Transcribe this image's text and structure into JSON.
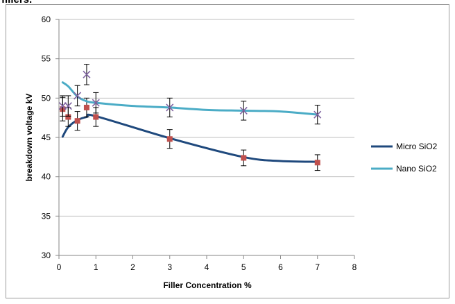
{
  "page": {
    "top_text": "fillers."
  },
  "chart_data": {
    "type": "line",
    "title": "",
    "xlabel": "Filler Concentration %",
    "ylabel": "breakdown voltage kV",
    "xlim": [
      0,
      8
    ],
    "ylim": [
      30,
      60
    ],
    "x_ticks": [
      "0",
      "1",
      "2",
      "3",
      "4",
      "5",
      "6",
      "7",
      "8"
    ],
    "y_ticks": [
      "30",
      "35",
      "40",
      "45",
      "50",
      "55",
      "60"
    ],
    "grid": "horizontal",
    "legend_position": "right",
    "series": [
      {
        "name": "Micro SiO2",
        "color": "#1f497d",
        "curve": [
          [
            0.1,
            45.1
          ],
          [
            0.25,
            46.3
          ],
          [
            0.5,
            47.2
          ],
          [
            0.75,
            47.6
          ],
          [
            1,
            47.7
          ],
          [
            3,
            44.9
          ],
          [
            5,
            42.5
          ],
          [
            6,
            42.0
          ],
          [
            7,
            41.9
          ]
        ],
        "marker": "square",
        "marker_color": "#c0504d",
        "points": [
          {
            "x": 0.1,
            "y": 48.6,
            "err": 1.5
          },
          {
            "x": 0.25,
            "y": 47.6,
            "err": 1.2
          },
          {
            "x": 0.5,
            "y": 47.1,
            "err": 1.2
          },
          {
            "x": 0.75,
            "y": 48.8,
            "err": 1.2
          },
          {
            "x": 1,
            "y": 47.6,
            "err": 1.2
          },
          {
            "x": 3,
            "y": 44.8,
            "err": 1.2
          },
          {
            "x": 5,
            "y": 42.4,
            "err": 1.0
          },
          {
            "x": 7,
            "y": 41.8,
            "err": 1.0
          }
        ]
      },
      {
        "name": "Nano SiO2",
        "color": "#4bacc6",
        "curve": [
          [
            0.1,
            52.0
          ],
          [
            0.25,
            51.5
          ],
          [
            0.5,
            50.2
          ],
          [
            0.75,
            49.6
          ],
          [
            1,
            49.4
          ],
          [
            2,
            49.0
          ],
          [
            3,
            48.8
          ],
          [
            4,
            48.5
          ],
          [
            5,
            48.4
          ],
          [
            6,
            48.3
          ],
          [
            7,
            47.9
          ]
        ],
        "marker": "x",
        "marker_color": "#8064a2",
        "points": [
          {
            "x": 0.1,
            "y": 49.0,
            "err": 1.3
          },
          {
            "x": 0.25,
            "y": 49.0,
            "err": 1.3
          },
          {
            "x": 0.5,
            "y": 50.3,
            "err": 1.3
          },
          {
            "x": 0.75,
            "y": 53.0,
            "err": 1.3
          },
          {
            "x": 1,
            "y": 49.4,
            "err": 1.3
          },
          {
            "x": 3,
            "y": 48.8,
            "err": 1.2
          },
          {
            "x": 5,
            "y": 48.4,
            "err": 1.2
          },
          {
            "x": 7,
            "y": 47.9,
            "err": 1.2
          }
        ]
      }
    ]
  }
}
